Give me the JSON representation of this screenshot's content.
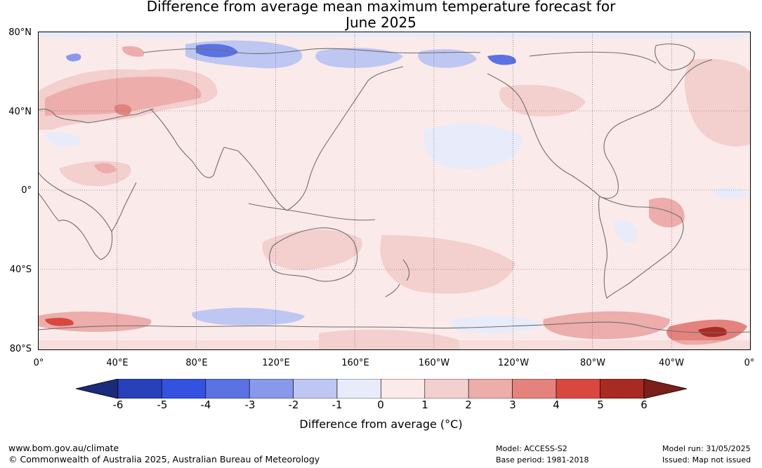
{
  "title_line1": "Difference from average mean maximum temperature forecast for",
  "title_line2": "June 2025",
  "lat_labels": [
    "80°N",
    "40°N",
    "0°",
    "40°S",
    "80°S"
  ],
  "lon_labels": [
    "0°",
    "40°E",
    "80°E",
    "120°E",
    "160°E",
    "160°W",
    "120°W",
    "80°W",
    "40°W",
    "0°"
  ],
  "colorbar": {
    "ticks": [
      "-6",
      "-5",
      "-4",
      "-3",
      "-2",
      "-1",
      "0",
      "1",
      "2",
      "3",
      "4",
      "5",
      "6"
    ],
    "colors": [
      "#1c2a7c",
      "#2840b8",
      "#3452e0",
      "#5a72e2",
      "#8898ea",
      "#bec7f2",
      "#e8ebfa",
      "#fbeaea",
      "#f3cfce",
      "#ecadab",
      "#e4827d",
      "#d9483f",
      "#a82b22",
      "#7a1f19"
    ],
    "label": "Difference from average (°C)"
  },
  "footer": {
    "left_line1": "www.bom.gov.au/climate",
    "left_line2": "© Commonwealth of Australia 2025, Australian Bureau of Meteorology",
    "mid_line1": "Model: ACCESS-S2",
    "mid_line2": "Base period: 1981-2018",
    "right_line1": "Model run: 31/05/2025",
    "right_line2": "Issued: Map not issued"
  }
}
